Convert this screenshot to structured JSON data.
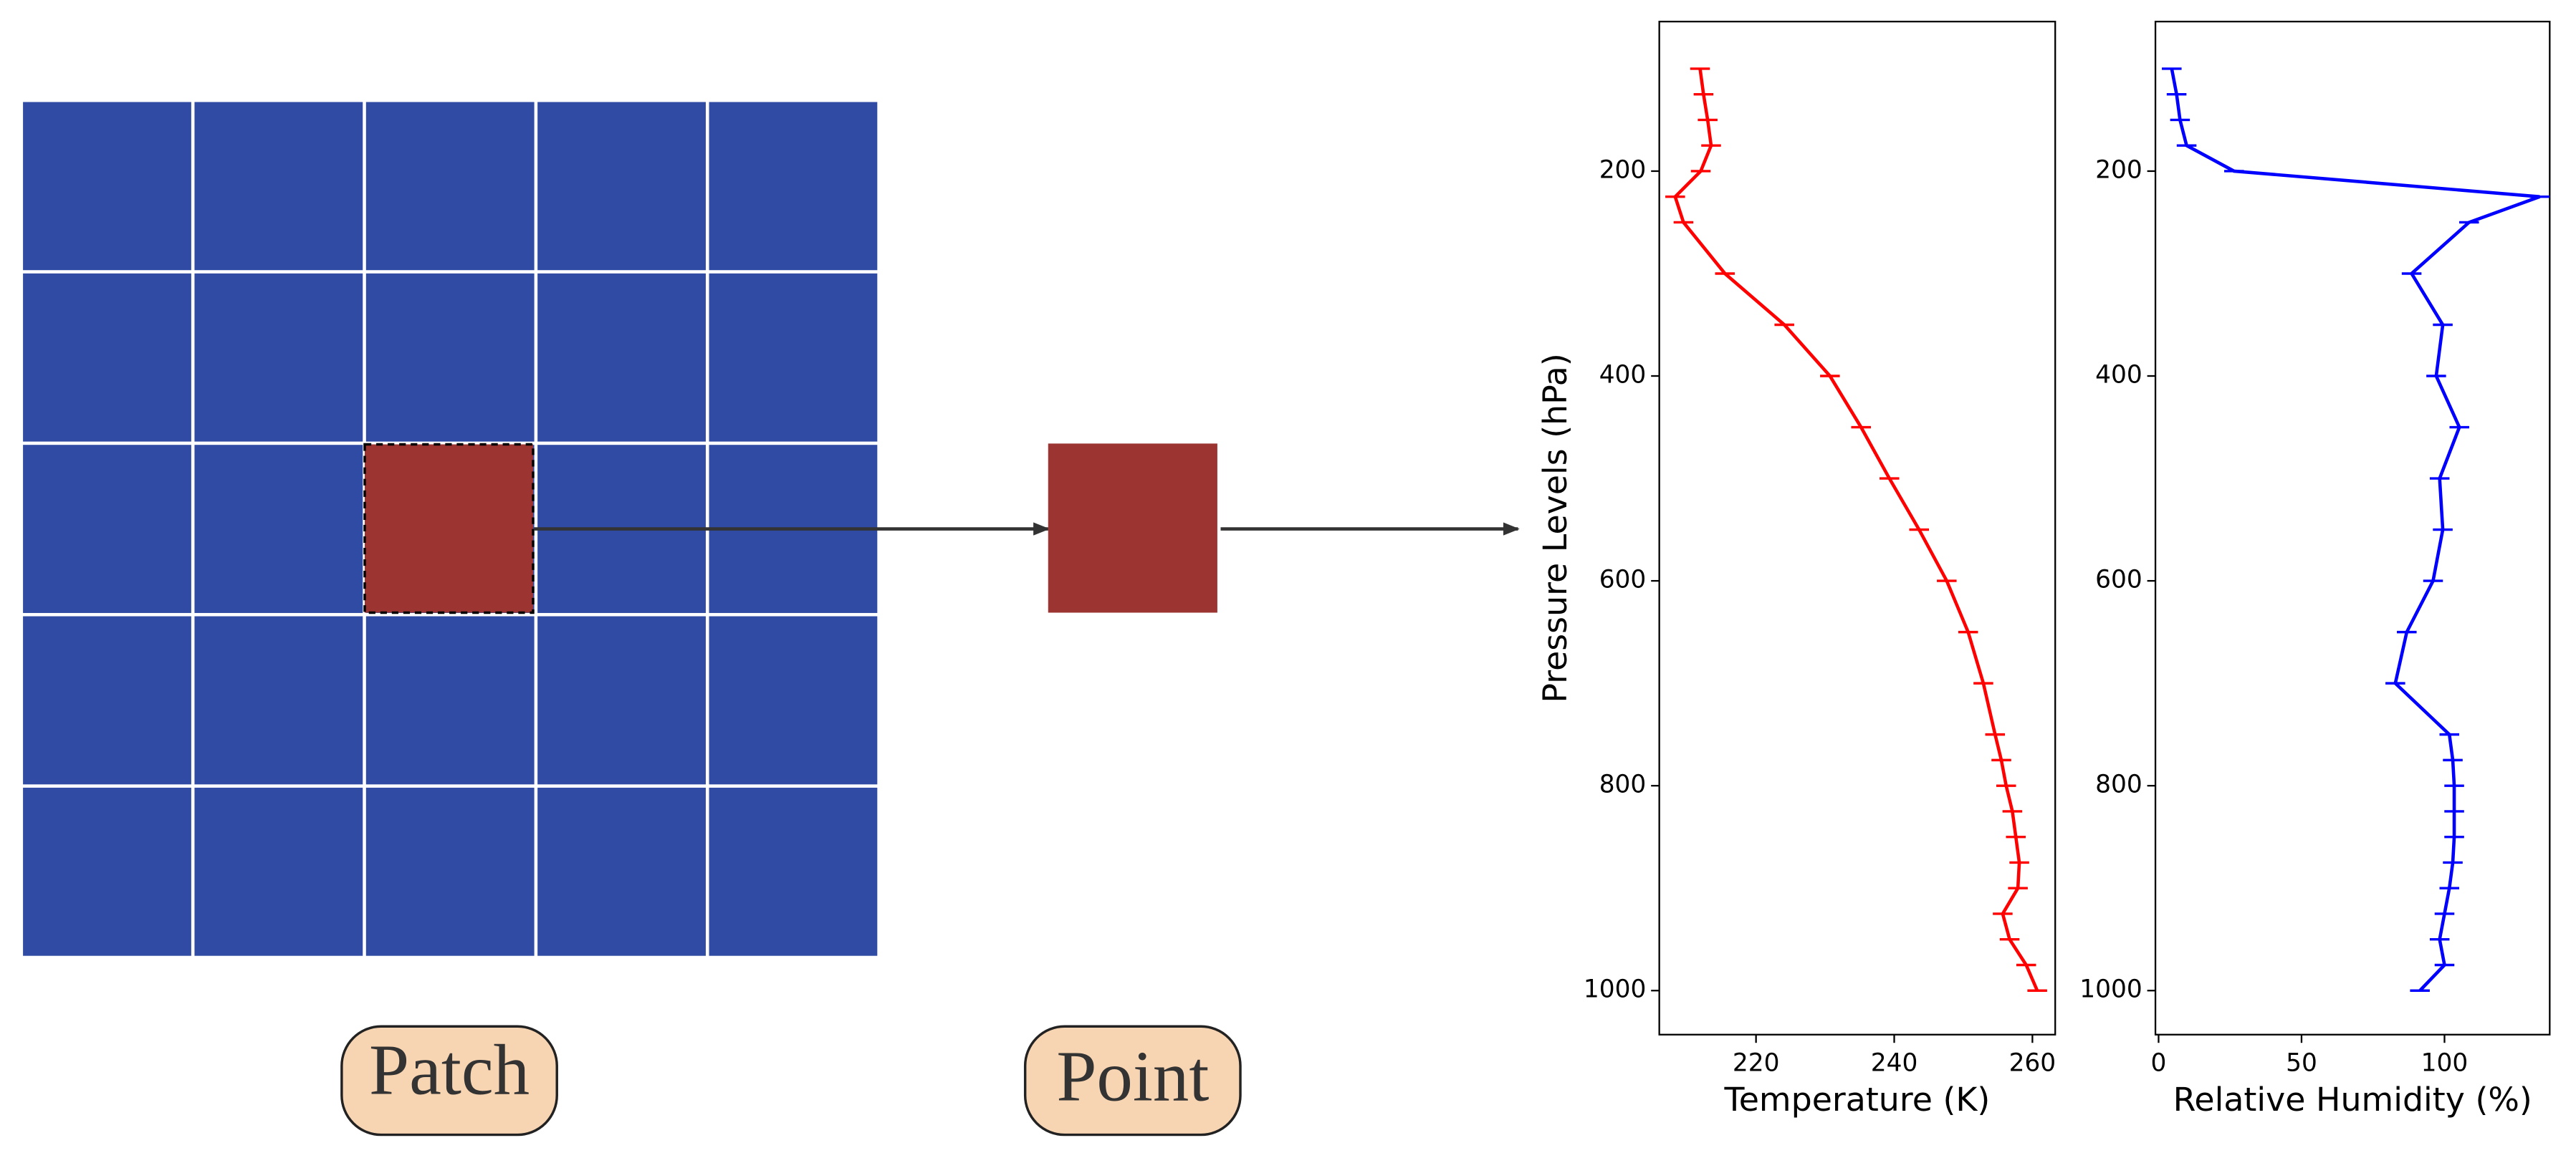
{
  "diagram": {
    "labels": [
      "Patch",
      "Point"
    ]
  },
  "chart_data": [
    {
      "type": "line",
      "xlabel": "Temperature (K)",
      "ylabel": "Pressure Levels (hPa)",
      "color": "#ff0000",
      "levels": [
        100,
        125,
        150,
        175,
        200,
        225,
        250,
        300,
        350,
        400,
        450,
        500,
        550,
        600,
        650,
        700,
        750,
        775,
        800,
        825,
        850,
        875,
        900,
        925,
        950,
        975,
        1000
      ],
      "values": [
        211.9,
        212.4,
        213,
        213.5,
        212,
        208.3,
        209.5,
        215.5,
        224.1,
        230.7,
        235.2,
        239.3,
        243.6,
        247.6,
        250.7,
        252.9,
        254.6,
        255.5,
        256.2,
        257.1,
        257.6,
        258.1,
        257.9,
        255.7,
        256.7,
        259.1,
        260.7
      ],
      "xlim": [
        206,
        263.3
      ],
      "xticks": [
        220,
        240,
        260
      ],
      "ylim": [
        1043,
        54
      ],
      "yticks": [
        200,
        400,
        600,
        800,
        1000
      ]
    },
    {
      "type": "line",
      "xlabel": "Relative Humidity (%)",
      "color": "#0000ff",
      "levels": [
        100,
        125,
        150,
        175,
        200,
        225,
        250,
        300,
        350,
        400,
        450,
        500,
        550,
        600,
        650,
        700,
        750,
        775,
        800,
        825,
        850,
        875,
        900,
        925,
        950,
        975,
        1000
      ],
      "values": [
        4.6,
        6.3,
        7.5,
        9.8,
        26.4,
        133.3,
        108.6,
        88.5,
        99.4,
        97.1,
        105.2,
        98.3,
        99.4,
        96,
        86.8,
        82.8,
        101.7,
        102.9,
        103.4,
        103.4,
        103.4,
        102.9,
        101.7,
        100,
        98.3,
        100,
        91.4
      ],
      "xlim": [
        -1.1,
        136.8
      ],
      "xticks": [
        0,
        50,
        100
      ],
      "ylim": [
        1043,
        54
      ],
      "yticks": [
        200,
        400,
        600,
        800,
        1000
      ]
    }
  ]
}
